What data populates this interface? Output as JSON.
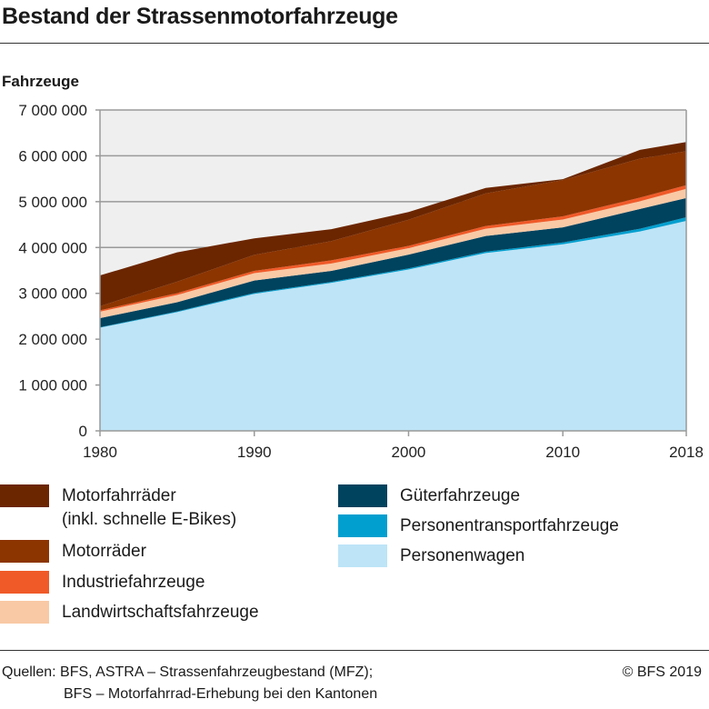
{
  "title": "Bestand der Strassenmotorfahrzeuge",
  "footer": {
    "source_line1": "Quellen: BFS, ASTRA – Strassenfahrzeugbestand (MFZ);",
    "source_line2": "BFS – Motorfahrrad-Erhebung bei den Kantonen",
    "copyright": "© BFS 2019"
  },
  "chart_data": {
    "type": "area",
    "stacked": true,
    "ylabel": "Fahrzeuge",
    "xlabel": "",
    "xlim": [
      1980,
      2018
    ],
    "ylim": [
      0,
      7000000
    ],
    "x_ticks": [
      "1980",
      "1990",
      "2000",
      "2010",
      "2018"
    ],
    "y_ticks": [
      "0",
      "1 000 000",
      "2 000 000",
      "3 000 000",
      "4 000 000",
      "5 000 000",
      "6 000 000",
      "7 000 000"
    ],
    "grid": true,
    "legend_position": "bottom",
    "x": [
      1980,
      1985,
      1990,
      1995,
      2000,
      2005,
      2010,
      2015,
      2018
    ],
    "series": [
      {
        "name": "Personenwagen",
        "color": "#bde4f7",
        "values": [
          2250000,
          2590000,
          2990000,
          3230000,
          3520000,
          3880000,
          4070000,
          4350000,
          4580000
        ]
      },
      {
        "name": "Personentransportfahrzeuge",
        "color": "#009fcf",
        "values": [
          10000,
          15000,
          20000,
          20000,
          25000,
          30000,
          40000,
          60000,
          80000
        ]
      },
      {
        "name": "Güterfahrzeuge",
        "color": "#00435e",
        "values": [
          200000,
          200000,
          270000,
          240000,
          300000,
          340000,
          330000,
          430000,
          420000
        ]
      },
      {
        "name": "Landwirtschaftsfahrzeuge",
        "color": "#f9c9a5",
        "values": [
          140000,
          160000,
          160000,
          160000,
          140000,
          160000,
          170000,
          170000,
          200000
        ]
      },
      {
        "name": "Industriefahrzeuge",
        "color": "#f05a28",
        "values": [
          30000,
          40000,
          50000,
          70000,
          50000,
          60000,
          70000,
          80000,
          80000
        ]
      },
      {
        "name": "Motorräder",
        "color": "#8c3500",
        "values": [
          90000,
          250000,
          350000,
          420000,
          570000,
          710000,
          790000,
          850000,
          740000
        ]
      },
      {
        "name": "Motorfahrräder (inkl. schnelle E-Bikes)",
        "name_line1": "Motorfahrräder",
        "name_line2": "(inkl. schnelle E-Bikes)",
        "color": "#6b2600",
        "values": [
          670000,
          640000,
          360000,
          260000,
          170000,
          120000,
          20000,
          190000,
          200000
        ]
      }
    ]
  }
}
